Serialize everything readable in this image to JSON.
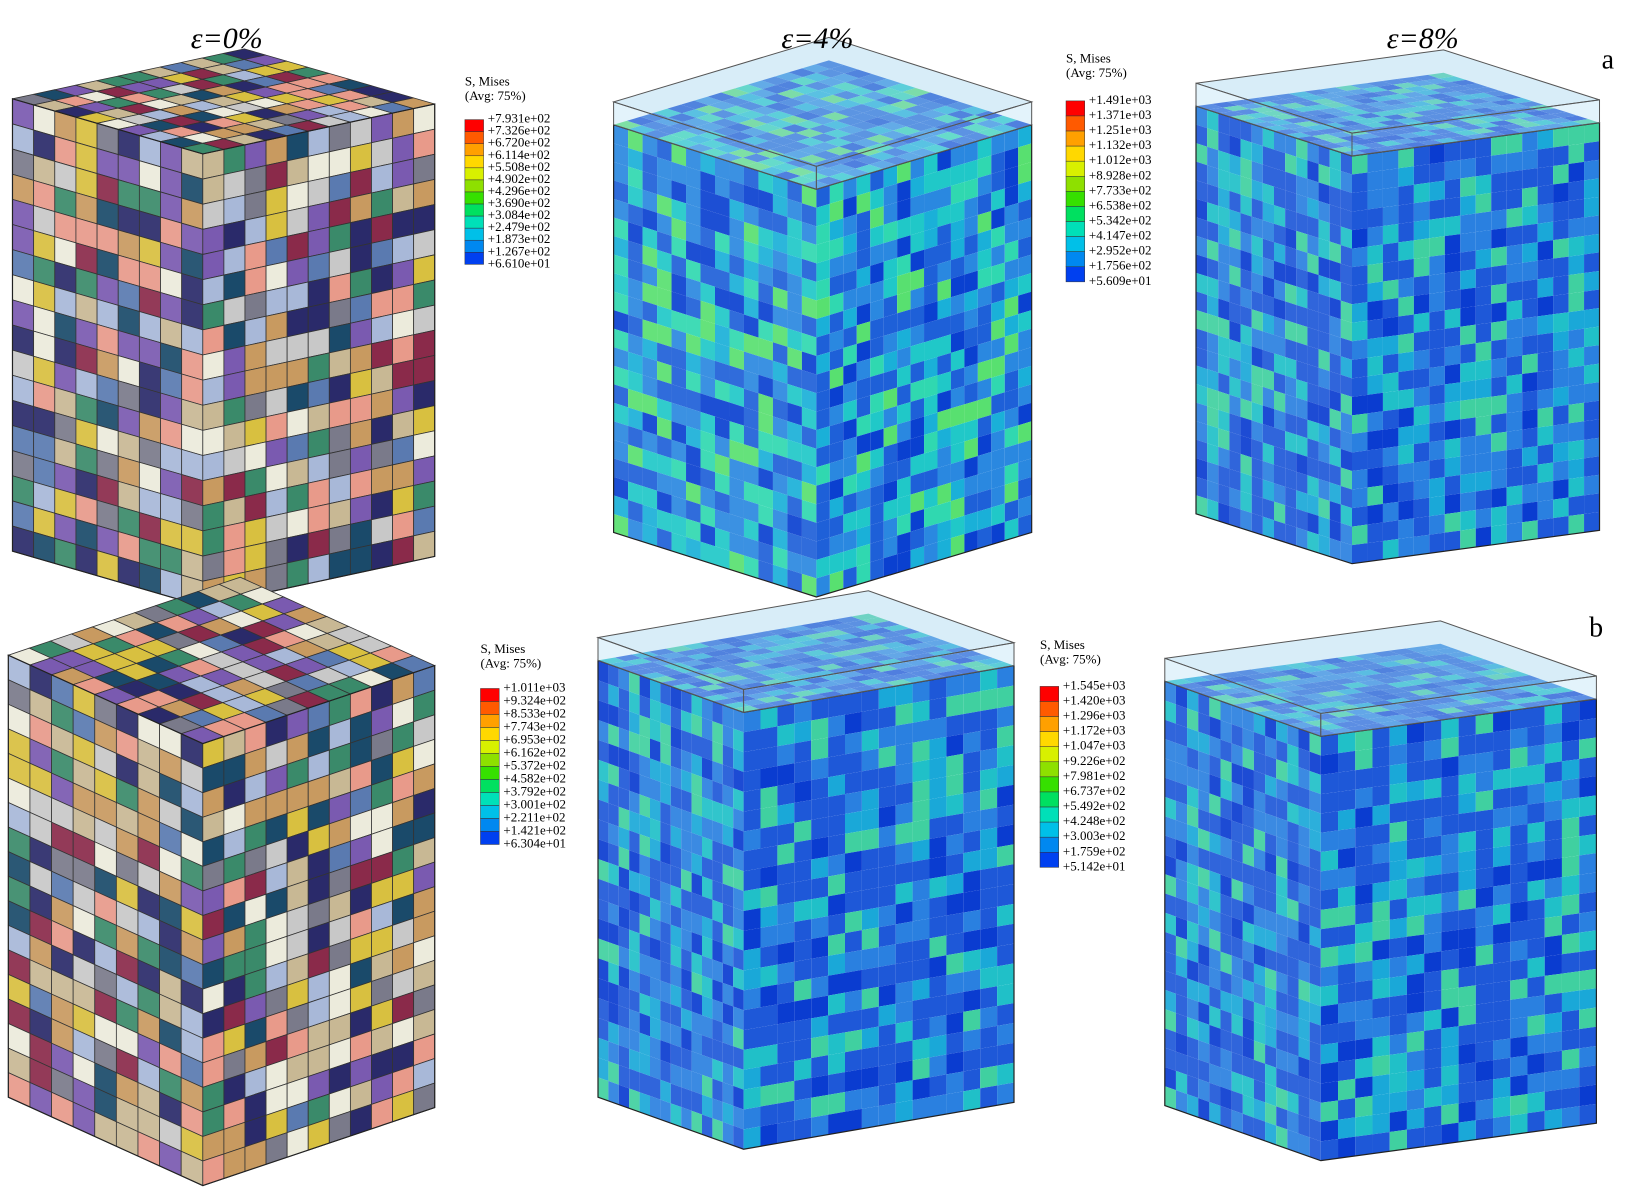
{
  "headers": [
    "ε=0%",
    "ε=4%",
    "ε=8%"
  ],
  "rows": [
    {
      "label": "a",
      "legends": [
        {
          "title": "S, Mises",
          "subtitle": "(Avg: 75%)",
          "values": [
            "+7.931e+02",
            "+7.326e+02",
            "+6.720e+02",
            "+6.114e+02",
            "+5.508e+02",
            "+4.902e+02",
            "+4.296e+02",
            "+3.690e+02",
            "+3.084e+02",
            "+2.479e+02",
            "+1.873e+02",
            "+1.267e+02",
            "+6.610e+01"
          ]
        },
        {
          "title": "S, Mises",
          "subtitle": "(Avg: 75%)",
          "values": [
            "+1.491e+03",
            "+1.371e+03",
            "+1.251e+03",
            "+1.132e+03",
            "+1.012e+03",
            "+8.928e+02",
            "+7.733e+02",
            "+6.538e+02",
            "+5.342e+02",
            "+4.147e+02",
            "+2.952e+02",
            "+1.756e+02",
            "+5.609e+01"
          ]
        }
      ]
    },
    {
      "label": "b",
      "legends": [
        {
          "title": "S, Mises",
          "subtitle": "(Avg: 75%)",
          "values": [
            "+1.011e+03",
            "+9.324e+02",
            "+8.533e+02",
            "+7.743e+02",
            "+6.953e+02",
            "+6.162e+02",
            "+5.372e+02",
            "+4.582e+02",
            "+3.792e+02",
            "+3.001e+02",
            "+2.211e+02",
            "+1.421e+02",
            "+6.304e+01"
          ]
        },
        {
          "title": "S, Mises",
          "subtitle": "(Avg: 75%)",
          "values": [
            "+1.545e+03",
            "+1.420e+03",
            "+1.296e+03",
            "+1.172e+03",
            "+1.047e+03",
            "+9.226e+02",
            "+7.981e+02",
            "+6.737e+02",
            "+5.492e+02",
            "+4.248e+02",
            "+3.003e+02",
            "+1.759e+02",
            "+5.142e+01"
          ]
        }
      ]
    }
  ]
}
